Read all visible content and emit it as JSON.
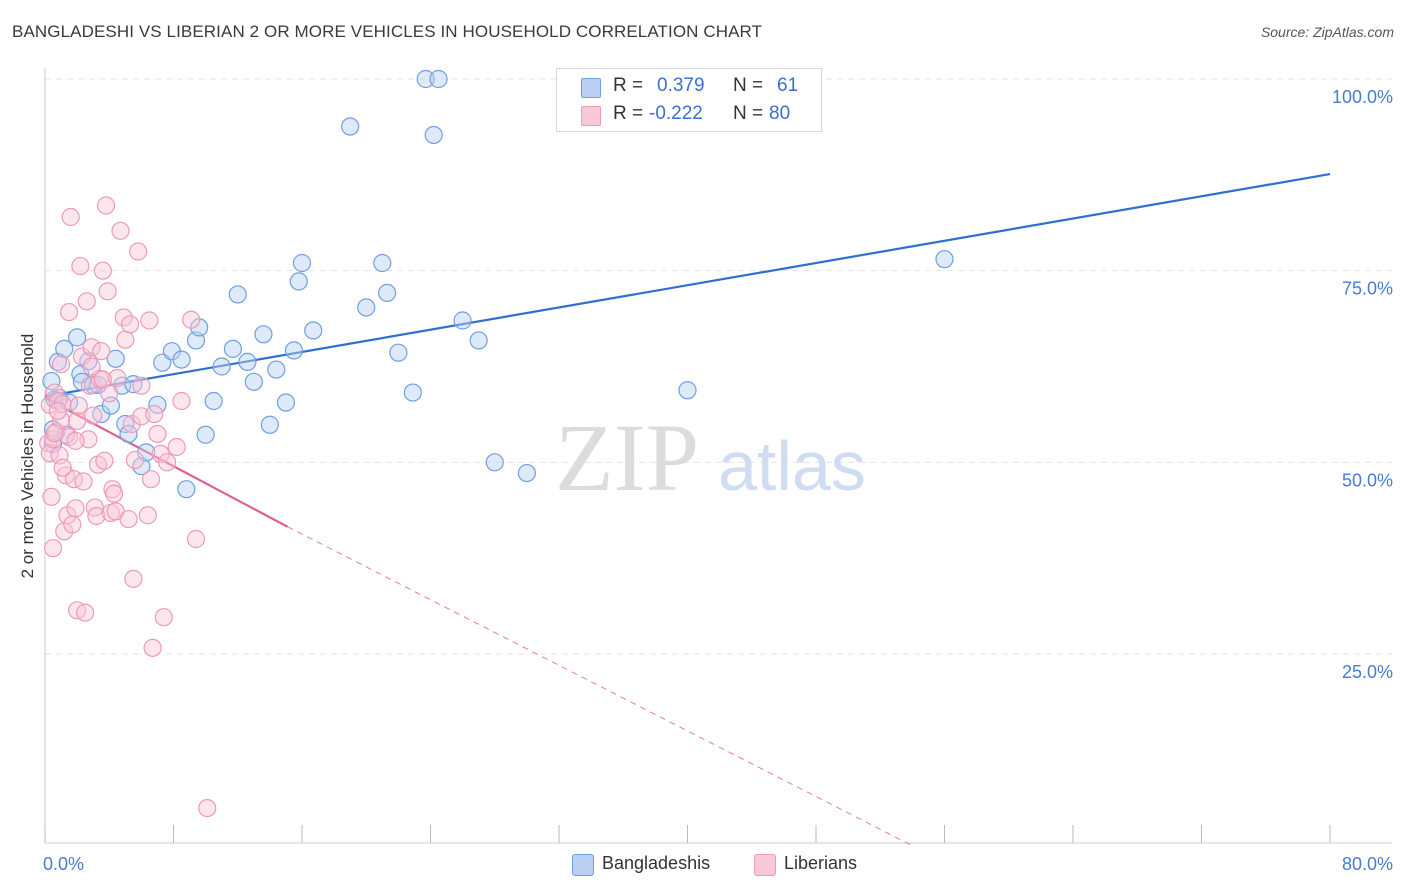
{
  "chart_data": {
    "type": "scatter",
    "title": "BANGLADESHI VS LIBERIAN 2 OR MORE VEHICLES IN HOUSEHOLD CORRELATION CHART",
    "source": "Source: ZipAtlas.com",
    "xlabel": "",
    "ylabel": "2 or more Vehicles in Household",
    "xlim": [
      0,
      80
    ],
    "ylim": [
      0,
      100
    ],
    "x_tick_labels": [
      "0.0%",
      "80.0%"
    ],
    "y_tick_labels": [
      "100.0%",
      "75.0%",
      "50.0%",
      "25.0%"
    ],
    "y_ticks": [
      100,
      75,
      50,
      25
    ],
    "watermark_zip": "ZIP",
    "watermark_atlas": "atlas",
    "legend": {
      "rows": [
        {
          "r_label": "R =",
          "r_value": "0.379",
          "n_label": "N =",
          "n_value": "61"
        },
        {
          "r_label": "R =",
          "r_value": "-0.222",
          "n_label": "N =",
          "n_value": "80"
        }
      ]
    },
    "series": [
      {
        "name": "Bangladeshis",
        "color": "#6e9fe3",
        "fill": "#b9d0f2",
        "line_color": "#2f6fd0",
        "trend": {
          "x0": 0,
          "y0": 58.6,
          "x1": 80,
          "y1": 87.6
        },
        "points": [
          [
            0.4,
            60.6
          ],
          [
            0.5,
            54.3
          ],
          [
            0.5,
            52.4
          ],
          [
            0.6,
            58.2
          ],
          [
            0.8,
            63.1
          ],
          [
            0.9,
            58.4
          ],
          [
            1.2,
            64.8
          ],
          [
            1.3,
            53.6
          ],
          [
            1.5,
            57.8
          ],
          [
            2.0,
            66.3
          ],
          [
            2.2,
            61.5
          ],
          [
            2.3,
            60.5
          ],
          [
            2.7,
            63.2
          ],
          [
            3.0,
            60.1
          ],
          [
            3.3,
            60.1
          ],
          [
            3.5,
            56.3
          ],
          [
            4.1,
            57.4
          ],
          [
            4.4,
            63.5
          ],
          [
            4.8,
            60.0
          ],
          [
            5.0,
            55.0
          ],
          [
            5.2,
            53.7
          ],
          [
            5.5,
            60.2
          ],
          [
            6.0,
            49.5
          ],
          [
            6.3,
            51.3
          ],
          [
            7.0,
            57.5
          ],
          [
            7.3,
            63.0
          ],
          [
            7.9,
            64.5
          ],
          [
            8.5,
            63.4
          ],
          [
            8.8,
            46.5
          ],
          [
            9.4,
            65.9
          ],
          [
            9.6,
            67.6
          ],
          [
            10.0,
            53.6
          ],
          [
            10.5,
            58.0
          ],
          [
            11.0,
            62.5
          ],
          [
            11.7,
            64.8
          ],
          [
            12.0,
            71.9
          ],
          [
            12.6,
            63.1
          ],
          [
            13.0,
            60.5
          ],
          [
            13.6,
            66.7
          ],
          [
            14.0,
            54.9
          ],
          [
            14.4,
            62.1
          ],
          [
            15.0,
            57.8
          ],
          [
            15.5,
            64.6
          ],
          [
            15.8,
            73.6
          ],
          [
            16.0,
            76.0
          ],
          [
            16.7,
            67.2
          ],
          [
            19.0,
            93.8
          ],
          [
            20.0,
            70.2
          ],
          [
            21.0,
            76.0
          ],
          [
            21.3,
            72.1
          ],
          [
            22.0,
            64.3
          ],
          [
            22.9,
            59.1
          ],
          [
            23.7,
            100.0
          ],
          [
            24.2,
            92.7
          ],
          [
            24.5,
            100.0
          ],
          [
            26.0,
            68.5
          ],
          [
            27.0,
            65.9
          ],
          [
            28.0,
            50.0
          ],
          [
            30.0,
            48.6
          ],
          [
            40.0,
            59.4
          ],
          [
            56.0,
            76.5
          ]
        ]
      },
      {
        "name": "Liberians",
        "color": "#ef9ab5",
        "fill": "#f8c8d6",
        "line_color": "#e0608c",
        "trend": {
          "x0": 0,
          "y0": 58.4,
          "x1": 15.1,
          "y1": 41.6
        },
        "trend_dashed": {
          "x0": 15.1,
          "y0": 41.6,
          "x1": 54.0,
          "y1": 0.0
        },
        "points": [
          [
            0.2,
            52.5
          ],
          [
            0.3,
            51.2
          ],
          [
            0.3,
            57.5
          ],
          [
            0.4,
            45.5
          ],
          [
            0.5,
            53.0
          ],
          [
            0.5,
            38.8
          ],
          [
            0.6,
            59.1
          ],
          [
            0.7,
            54.0
          ],
          [
            0.8,
            58.0
          ],
          [
            0.9,
            50.9
          ],
          [
            1.0,
            55.5
          ],
          [
            1.0,
            62.8
          ],
          [
            1.1,
            57.6
          ],
          [
            1.2,
            41.0
          ],
          [
            1.3,
            48.3
          ],
          [
            1.4,
            43.1
          ],
          [
            1.5,
            53.3
          ],
          [
            1.5,
            69.6
          ],
          [
            1.6,
            82.0
          ],
          [
            1.7,
            41.9
          ],
          [
            1.8,
            47.8
          ],
          [
            1.9,
            44.0
          ],
          [
            2.0,
            55.4
          ],
          [
            2.0,
            30.7
          ],
          [
            2.1,
            57.4
          ],
          [
            2.2,
            75.6
          ],
          [
            2.3,
            63.8
          ],
          [
            2.4,
            47.5
          ],
          [
            2.5,
            30.4
          ],
          [
            2.6,
            71.0
          ],
          [
            2.7,
            53.0
          ],
          [
            2.8,
            60.0
          ],
          [
            2.9,
            65.0
          ],
          [
            3.0,
            56.1
          ],
          [
            3.1,
            44.1
          ],
          [
            3.2,
            43.0
          ],
          [
            3.3,
            49.7
          ],
          [
            3.4,
            60.9
          ],
          [
            3.5,
            64.5
          ],
          [
            3.6,
            75.0
          ],
          [
            3.7,
            50.2
          ],
          [
            3.8,
            83.5
          ],
          [
            3.9,
            72.3
          ],
          [
            4.0,
            59.0
          ],
          [
            4.1,
            43.4
          ],
          [
            4.2,
            46.5
          ],
          [
            4.3,
            45.9
          ],
          [
            4.4,
            43.6
          ],
          [
            4.5,
            61.0
          ],
          [
            4.7,
            80.2
          ],
          [
            4.9,
            68.9
          ],
          [
            5.0,
            66.0
          ],
          [
            5.2,
            42.6
          ],
          [
            5.3,
            68.0
          ],
          [
            5.4,
            55.0
          ],
          [
            5.5,
            34.8
          ],
          [
            5.6,
            50.3
          ],
          [
            5.8,
            77.5
          ],
          [
            6.0,
            56.0
          ],
          [
            6.4,
            43.1
          ],
          [
            6.5,
            68.5
          ],
          [
            6.6,
            47.8
          ],
          [
            6.7,
            25.8
          ],
          [
            6.8,
            56.3
          ],
          [
            7.0,
            53.7
          ],
          [
            7.2,
            51.1
          ],
          [
            7.4,
            29.8
          ],
          [
            7.6,
            50.0
          ],
          [
            8.2,
            52.0
          ],
          [
            9.1,
            68.6
          ],
          [
            9.4,
            40.0
          ],
          [
            10.1,
            4.9
          ],
          [
            8.5,
            58.0
          ],
          [
            6.0,
            60.0
          ],
          [
            3.6,
            60.8
          ],
          [
            2.9,
            62.5
          ],
          [
            1.9,
            52.8
          ],
          [
            1.1,
            49.3
          ],
          [
            0.8,
            56.7
          ],
          [
            0.6,
            53.8
          ]
        ]
      }
    ]
  }
}
